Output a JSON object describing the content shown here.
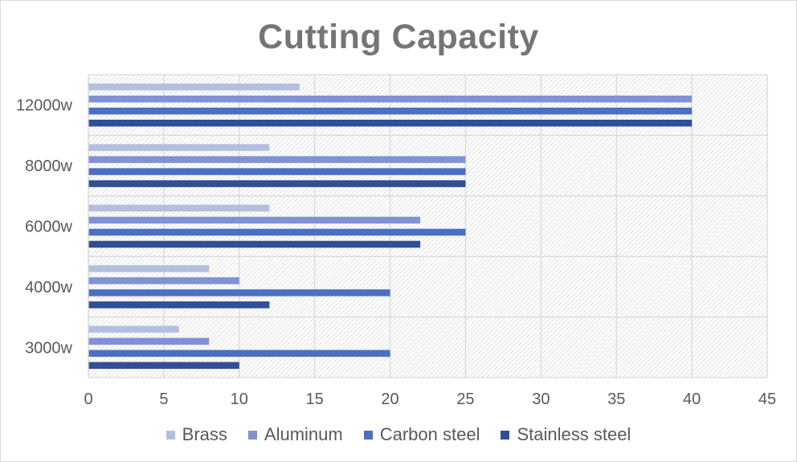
{
  "chart_data": {
    "type": "bar",
    "orientation": "horizontal",
    "title": "Cutting Capacity",
    "xlabel": "",
    "ylabel": "",
    "xlim": [
      0,
      45
    ],
    "x_ticks": [
      0,
      5,
      10,
      15,
      20,
      25,
      30,
      35,
      40,
      45
    ],
    "categories": [
      "3000w",
      "4000w",
      "6000w",
      "8000w",
      "12000w"
    ],
    "series": [
      {
        "name": "Brass",
        "color": "#b4bfe0",
        "values": [
          6,
          8,
          12,
          12,
          14
        ]
      },
      {
        "name": "Aluminum",
        "color": "#7f92d4",
        "values": [
          8,
          10,
          22,
          25,
          40
        ]
      },
      {
        "name": "Carbon steel",
        "color": "#4a6fc4",
        "values": [
          20,
          20,
          25,
          25,
          40
        ]
      },
      {
        "name": "Stainless steel",
        "color": "#2f4f96",
        "values": [
          10,
          12,
          22,
          25,
          40
        ]
      }
    ],
    "grid": true,
    "legend_position": "bottom"
  }
}
